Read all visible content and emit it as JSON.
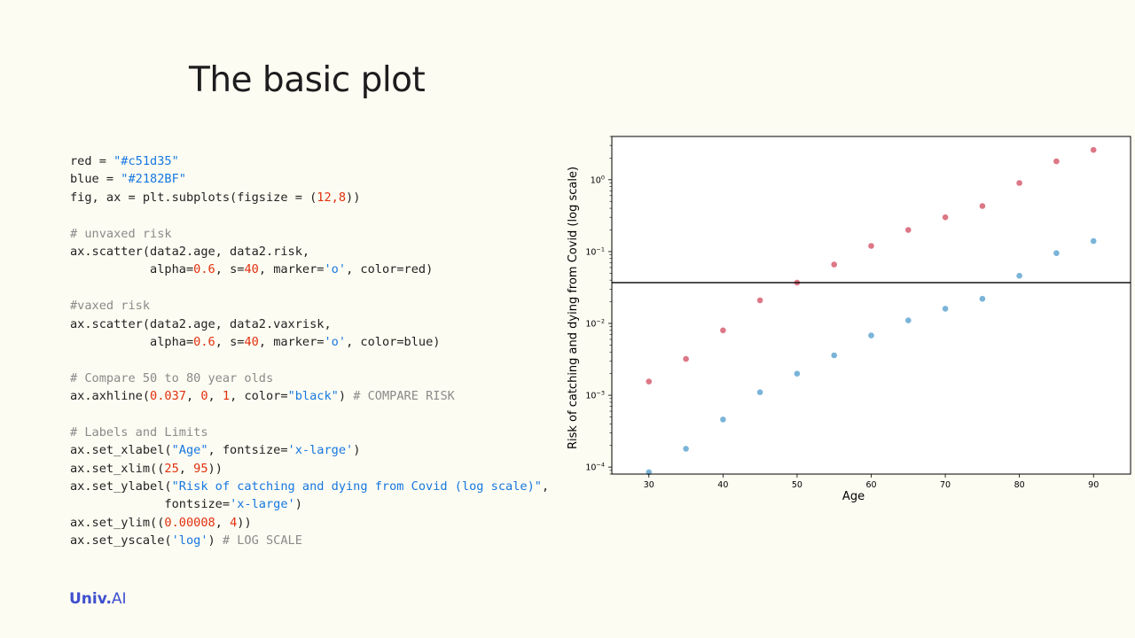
{
  "slide": {
    "title": "The basic plot"
  },
  "brand": {
    "main": "Univ",
    "dot": ".",
    "suffix": "AI"
  },
  "code": {
    "lines": [
      [
        [
          "txt",
          "red = "
        ],
        [
          "str",
          "\"#c51d35\""
        ]
      ],
      [
        [
          "txt",
          "blue = "
        ],
        [
          "str",
          "\"#2182BF\""
        ]
      ],
      [
        [
          "txt",
          "fig, ax = plt.subplots(figsize = ("
        ],
        [
          "num",
          "12,8"
        ],
        [
          "txt",
          "))"
        ]
      ],
      [],
      [
        [
          "com",
          "# unvaxed risk"
        ]
      ],
      [
        [
          "txt",
          "ax.scatter(data2.age, data2.risk,"
        ]
      ],
      [
        [
          "txt",
          "           alpha="
        ],
        [
          "num",
          "0.6"
        ],
        [
          "txt",
          ", s="
        ],
        [
          "num",
          "40"
        ],
        [
          "txt",
          ", marker="
        ],
        [
          "str",
          "'o'"
        ],
        [
          "txt",
          ", color=red)"
        ]
      ],
      [],
      [
        [
          "com",
          "#vaxed risk"
        ]
      ],
      [
        [
          "txt",
          "ax.scatter(data2.age, data2.vaxrisk,"
        ]
      ],
      [
        [
          "txt",
          "           alpha="
        ],
        [
          "num",
          "0.6"
        ],
        [
          "txt",
          ", s="
        ],
        [
          "num",
          "40"
        ],
        [
          "txt",
          ", marker="
        ],
        [
          "str",
          "'o'"
        ],
        [
          "txt",
          ", color=blue)"
        ]
      ],
      [],
      [
        [
          "com",
          "# Compare 50 to 80 year olds"
        ]
      ],
      [
        [
          "txt",
          "ax.axhline("
        ],
        [
          "num",
          "0.037"
        ],
        [
          "txt",
          ", "
        ],
        [
          "num",
          "0"
        ],
        [
          "txt",
          ", "
        ],
        [
          "num",
          "1"
        ],
        [
          "txt",
          ", color="
        ],
        [
          "str",
          "\"black\""
        ],
        [
          "txt",
          ") "
        ],
        [
          "com",
          "# COMPARE RISK"
        ]
      ],
      [],
      [
        [
          "com",
          "# Labels and Limits"
        ]
      ],
      [
        [
          "txt",
          "ax.set_xlabel("
        ],
        [
          "str",
          "\"Age\""
        ],
        [
          "txt",
          ", fontsize="
        ],
        [
          "str",
          "'x-large'"
        ],
        [
          "txt",
          ")"
        ]
      ],
      [
        [
          "txt",
          "ax.set_xlim(("
        ],
        [
          "num",
          "25"
        ],
        [
          "txt",
          ", "
        ],
        [
          "num",
          "95"
        ],
        [
          "txt",
          "))"
        ]
      ],
      [
        [
          "txt",
          "ax.set_ylabel("
        ],
        [
          "str",
          "\"Risk of catching and dying from Covid (log scale)\""
        ],
        [
          "txt",
          ","
        ]
      ],
      [
        [
          "txt",
          "             fontsize="
        ],
        [
          "str",
          "'x-large'"
        ],
        [
          "txt",
          ")"
        ]
      ],
      [
        [
          "txt",
          "ax.set_ylim(("
        ],
        [
          "num",
          "0.00008"
        ],
        [
          "txt",
          ", "
        ],
        [
          "num",
          "4"
        ],
        [
          "txt",
          "))"
        ]
      ],
      [
        [
          "txt",
          "ax.set_yscale("
        ],
        [
          "str",
          "'log'"
        ],
        [
          "txt",
          ") "
        ],
        [
          "com",
          "# LOG SCALE"
        ]
      ]
    ]
  },
  "chart_data": {
    "type": "scatter",
    "title": "",
    "xlabel": "Age",
    "ylabel": "Risk of catching and dying from Covid (log scale)",
    "xlim": [
      25,
      95
    ],
    "ylim": [
      8e-05,
      4
    ],
    "yscale": "log",
    "grid": false,
    "x_ticks": [
      "30",
      "40",
      "50",
      "60",
      "70",
      "80",
      "90"
    ],
    "y_ticks": [
      {
        "value": 0.0001,
        "base": "10",
        "exp": "−4"
      },
      {
        "value": 0.001,
        "base": "10",
        "exp": "−3"
      },
      {
        "value": 0.01,
        "base": "10",
        "exp": "−2"
      },
      {
        "value": 0.1,
        "base": "10",
        "exp": "−1"
      },
      {
        "value": 1,
        "base": "10",
        "exp": "0"
      }
    ],
    "hline": {
      "y": 0.037,
      "color": "#000000"
    },
    "series": [
      {
        "color": "#c51d35",
        "alpha": 0.6,
        "x": [
          30,
          35,
          40,
          45,
          50,
          55,
          60,
          65,
          70,
          75,
          80,
          85,
          90
        ],
        "y": [
          0.00155,
          0.0032,
          0.008,
          0.021,
          0.037,
          0.066,
          0.12,
          0.2,
          0.3,
          0.43,
          0.9,
          1.8,
          2.6
        ]
      },
      {
        "color": "#2182BF",
        "alpha": 0.6,
        "x": [
          30,
          35,
          40,
          45,
          50,
          55,
          60,
          65,
          70,
          75,
          80,
          85,
          90
        ],
        "y": [
          8.5e-05,
          0.00018,
          0.00046,
          0.0011,
          0.002,
          0.0036,
          0.0068,
          0.011,
          0.016,
          0.022,
          0.046,
          0.095,
          0.14
        ]
      }
    ]
  }
}
